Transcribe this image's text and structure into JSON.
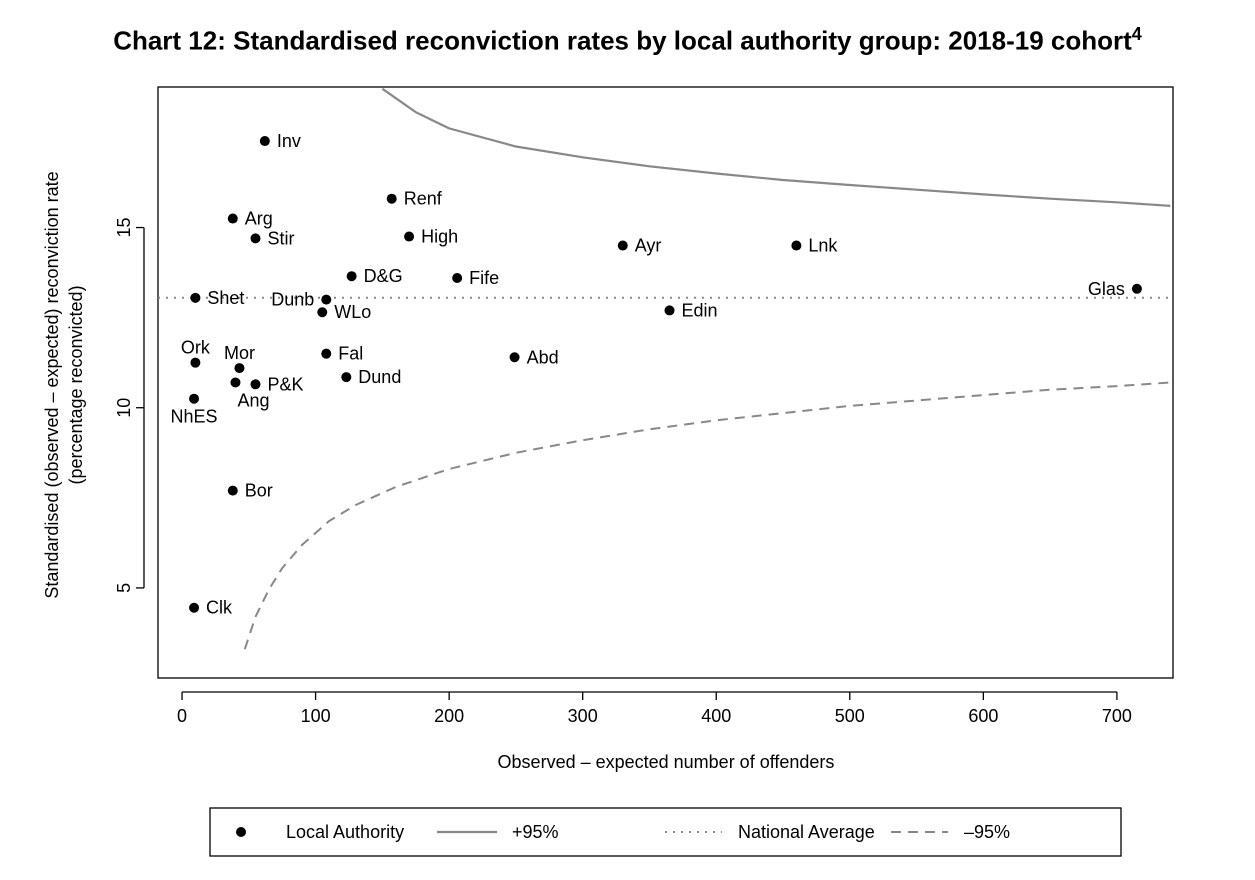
{
  "chart_data": {
    "type": "scatter",
    "title": "Chart 12: Standardised reconviction rates by local authority group: 2018-19 cohort",
    "title_superscript": "4",
    "xlabel": "Observed – expected number of offenders",
    "ylabel_line1": "Standardised (observed – expected) reconviction rate",
    "ylabel_line2": "(percentage reconvicted)",
    "xlim": [
      -18,
      742
    ],
    "ylim": [
      2.5,
      18.9
    ],
    "x_ticks": [
      0,
      100,
      200,
      300,
      400,
      500,
      600,
      700
    ],
    "y_ticks": [
      5,
      10,
      15
    ],
    "grid": false,
    "national_average": 13.05,
    "points": [
      {
        "label": "Inv",
        "x": 62,
        "y": 17.4,
        "pos": "right"
      },
      {
        "label": "Renf",
        "x": 157,
        "y": 15.8,
        "pos": "right"
      },
      {
        "label": "Arg",
        "x": 38,
        "y": 15.25,
        "pos": "right"
      },
      {
        "label": "Stir",
        "x": 55,
        "y": 14.7,
        "pos": "right"
      },
      {
        "label": "High",
        "x": 170,
        "y": 14.75,
        "pos": "right"
      },
      {
        "label": "Ayr",
        "x": 330,
        "y": 14.5,
        "pos": "right"
      },
      {
        "label": "Lnk",
        "x": 460,
        "y": 14.5,
        "pos": "right"
      },
      {
        "label": "D&G",
        "x": 127,
        "y": 13.65,
        "pos": "right"
      },
      {
        "label": "Fife",
        "x": 206,
        "y": 13.6,
        "pos": "right"
      },
      {
        "label": "Glas",
        "x": 715,
        "y": 13.3,
        "pos": "left"
      },
      {
        "label": "Shet",
        "x": 10,
        "y": 13.05,
        "pos": "right"
      },
      {
        "label": "Dunb",
        "x": 108,
        "y": 13.0,
        "pos": "left"
      },
      {
        "label": "WLo",
        "x": 105,
        "y": 12.65,
        "pos": "right"
      },
      {
        "label": "Edin",
        "x": 365,
        "y": 12.7,
        "pos": "right"
      },
      {
        "label": "Fal",
        "x": 108,
        "y": 11.5,
        "pos": "right"
      },
      {
        "label": "Abd",
        "x": 249,
        "y": 11.4,
        "pos": "right"
      },
      {
        "label": "Ork",
        "x": 10,
        "y": 11.25,
        "pos": "above"
      },
      {
        "label": "Mor",
        "x": 43,
        "y": 11.1,
        "pos": "above"
      },
      {
        "label": "Dund",
        "x": 123,
        "y": 10.85,
        "pos": "right"
      },
      {
        "label": "P&K",
        "x": 55,
        "y": 10.65,
        "pos": "right"
      },
      {
        "label": "Ang",
        "x": 40,
        "y": 10.7,
        "pos": "below"
      },
      {
        "label": "NhES",
        "x": 9,
        "y": 10.25,
        "pos": "below"
      },
      {
        "label": "Bor",
        "x": 38,
        "y": 7.7,
        "pos": "right"
      },
      {
        "label": "Clk",
        "x": 9,
        "y": 4.45,
        "pos": "right"
      }
    ],
    "series": [
      {
        "name": "+95%",
        "style": "solid",
        "color": "#888888",
        "x": [
          150,
          175,
          200,
          250,
          300,
          350,
          400,
          450,
          500,
          550,
          600,
          650,
          700,
          740
        ],
        "y": [
          18.85,
          18.2,
          17.75,
          17.25,
          16.95,
          16.7,
          16.5,
          16.32,
          16.18,
          16.05,
          15.92,
          15.8,
          15.7,
          15.6
        ]
      },
      {
        "name": "National Average",
        "style": "dotted",
        "color": "#888888",
        "x": [
          -18,
          742
        ],
        "y": [
          13.05,
          13.05
        ]
      },
      {
        "name": "–95%",
        "style": "dashed",
        "color": "#888888",
        "x": [
          47,
          55,
          65,
          75,
          90,
          110,
          130,
          160,
          200,
          250,
          300,
          350,
          400,
          450,
          500,
          550,
          600,
          650,
          700,
          740
        ],
        "y": [
          3.3,
          4.2,
          4.95,
          5.55,
          6.2,
          6.85,
          7.3,
          7.8,
          8.3,
          8.75,
          9.1,
          9.4,
          9.65,
          9.85,
          10.05,
          10.2,
          10.35,
          10.5,
          10.6,
          10.7
        ]
      }
    ],
    "legend": {
      "placement": "bottom",
      "items": [
        {
          "label": "Local Authority",
          "symbol": "point"
        },
        {
          "label": "+95%",
          "symbol": "solid"
        },
        {
          "label": "National Average",
          "symbol": "dotted"
        },
        {
          "label": "–95%",
          "symbol": "dashed"
        }
      ]
    }
  }
}
